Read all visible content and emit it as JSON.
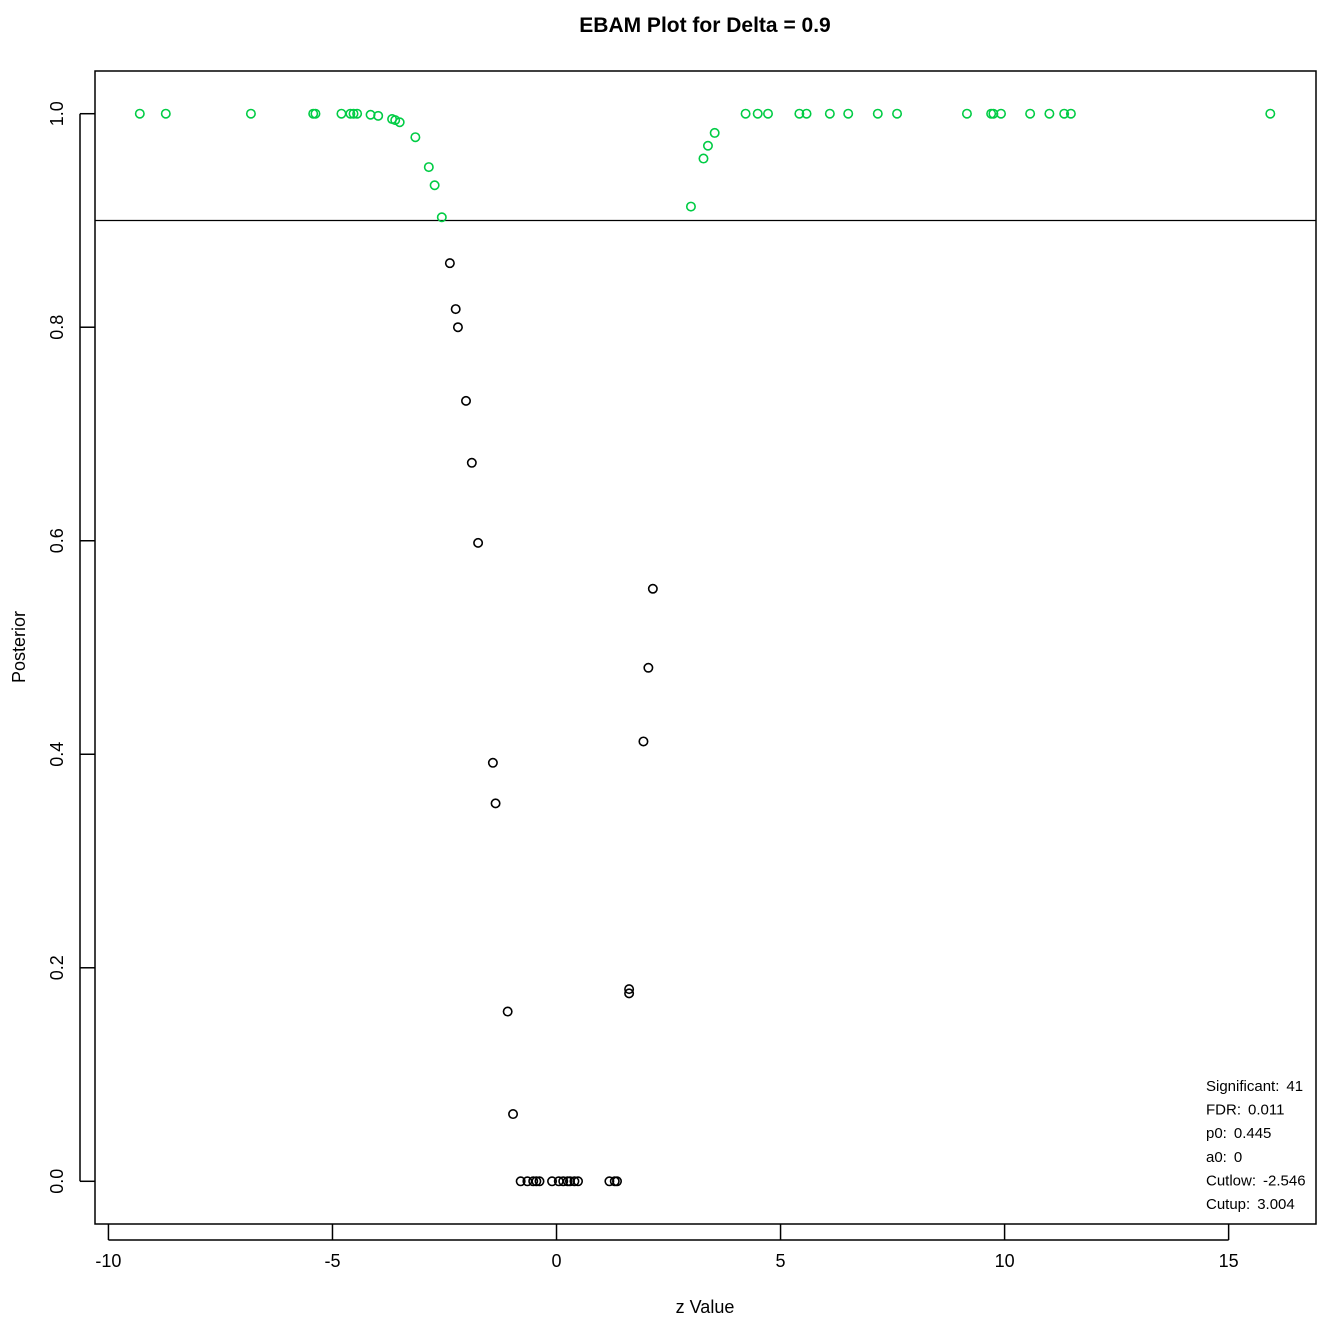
{
  "chart_data": {
    "type": "scatter",
    "title": "EBAM Plot for Delta = 0.9",
    "xlabel": "z Value",
    "ylabel": "Posterior",
    "xlim": [
      -10.3,
      16.95
    ],
    "ylim": [
      -0.04,
      1.04
    ],
    "x_ticks": [
      -10,
      -5,
      0,
      5,
      10,
      15
    ],
    "x_tick_labels": [
      "-10",
      "-5",
      "0",
      "5",
      "10",
      "15"
    ],
    "y_ticks": [
      0.0,
      0.2,
      0.4,
      0.6,
      0.8,
      1.0
    ],
    "y_tick_labels": [
      "0.0",
      "0.2",
      "0.4",
      "0.6",
      "0.8",
      "1.0"
    ],
    "threshold_line": 0.9,
    "grid": false,
    "legend": "none",
    "colors": {
      "significant": "#00cc44",
      "non_significant": "#000000",
      "line": "#000000"
    },
    "series": [
      {
        "role": "significant",
        "color": "#00cc44",
        "points": [
          [
            -9.3,
            1.0
          ],
          [
            -8.72,
            1.0
          ],
          [
            -6.82,
            1.0
          ],
          [
            -5.43,
            1.0
          ],
          [
            -5.38,
            1.0
          ],
          [
            -4.8,
            1.0
          ],
          [
            -4.6,
            1.0
          ],
          [
            -4.53,
            1.0
          ],
          [
            -4.45,
            1.0
          ],
          [
            -4.15,
            0.999
          ],
          [
            -3.98,
            0.998
          ],
          [
            -3.67,
            0.995
          ],
          [
            -3.6,
            0.994
          ],
          [
            -3.5,
            0.992
          ],
          [
            -3.15,
            0.978
          ],
          [
            -2.85,
            0.95
          ],
          [
            -2.72,
            0.933
          ],
          [
            -2.56,
            0.903
          ],
          [
            3.0,
            0.913
          ],
          [
            3.28,
            0.958
          ],
          [
            3.38,
            0.97
          ],
          [
            3.53,
            0.982
          ],
          [
            4.22,
            1.0
          ],
          [
            4.49,
            1.0
          ],
          [
            4.72,
            1.0
          ],
          [
            5.42,
            1.0
          ],
          [
            5.58,
            1.0
          ],
          [
            6.1,
            1.0
          ],
          [
            6.51,
            1.0
          ],
          [
            7.17,
            1.0
          ],
          [
            7.6,
            1.0
          ],
          [
            9.16,
            1.0
          ],
          [
            9.7,
            1.0
          ],
          [
            9.75,
            1.0
          ],
          [
            9.92,
            1.0
          ],
          [
            10.57,
            1.0
          ],
          [
            11.0,
            1.0
          ],
          [
            11.33,
            1.0
          ],
          [
            11.48,
            1.0
          ],
          [
            15.93,
            1.0
          ]
        ]
      },
      {
        "role": "non-significant",
        "color": "#000000",
        "points": [
          [
            -2.38,
            0.86
          ],
          [
            -2.25,
            0.817
          ],
          [
            -2.2,
            0.8
          ],
          [
            -2.02,
            0.731
          ],
          [
            -1.89,
            0.673
          ],
          [
            -1.75,
            0.598
          ],
          [
            2.15,
            0.555
          ],
          [
            2.05,
            0.481
          ],
          [
            1.94,
            0.412
          ],
          [
            -1.42,
            0.392
          ],
          [
            -1.36,
            0.354
          ],
          [
            -1.09,
            0.159
          ],
          [
            -0.97,
            0.063
          ],
          [
            1.62,
            0.18
          ],
          [
            1.62,
            0.176
          ],
          [
            -0.8,
            0.0
          ],
          [
            -0.65,
            0.0
          ],
          [
            -0.52,
            0.0
          ],
          [
            -0.45,
            0.0
          ],
          [
            -0.38,
            0.0
          ],
          [
            -0.1,
            0.0
          ],
          [
            0.05,
            0.0
          ],
          [
            0.15,
            0.0
          ],
          [
            0.25,
            0.0
          ],
          [
            0.3,
            0.0
          ],
          [
            0.4,
            0.0
          ],
          [
            0.48,
            0.0
          ],
          [
            1.18,
            0.0
          ],
          [
            1.3,
            0.0
          ],
          [
            1.35,
            0.0
          ]
        ]
      }
    ],
    "annotations": [
      {
        "key": "Significant:",
        "value": "41"
      },
      {
        "key": "FDR:",
        "value": "0.011"
      },
      {
        "key": "p0:",
        "value": "0.445"
      },
      {
        "key": "a0:",
        "value": "0"
      },
      {
        "key": "Cutlow:",
        "value": "-2.546"
      },
      {
        "key": "Cutup:",
        "value": "3.004"
      }
    ]
  }
}
